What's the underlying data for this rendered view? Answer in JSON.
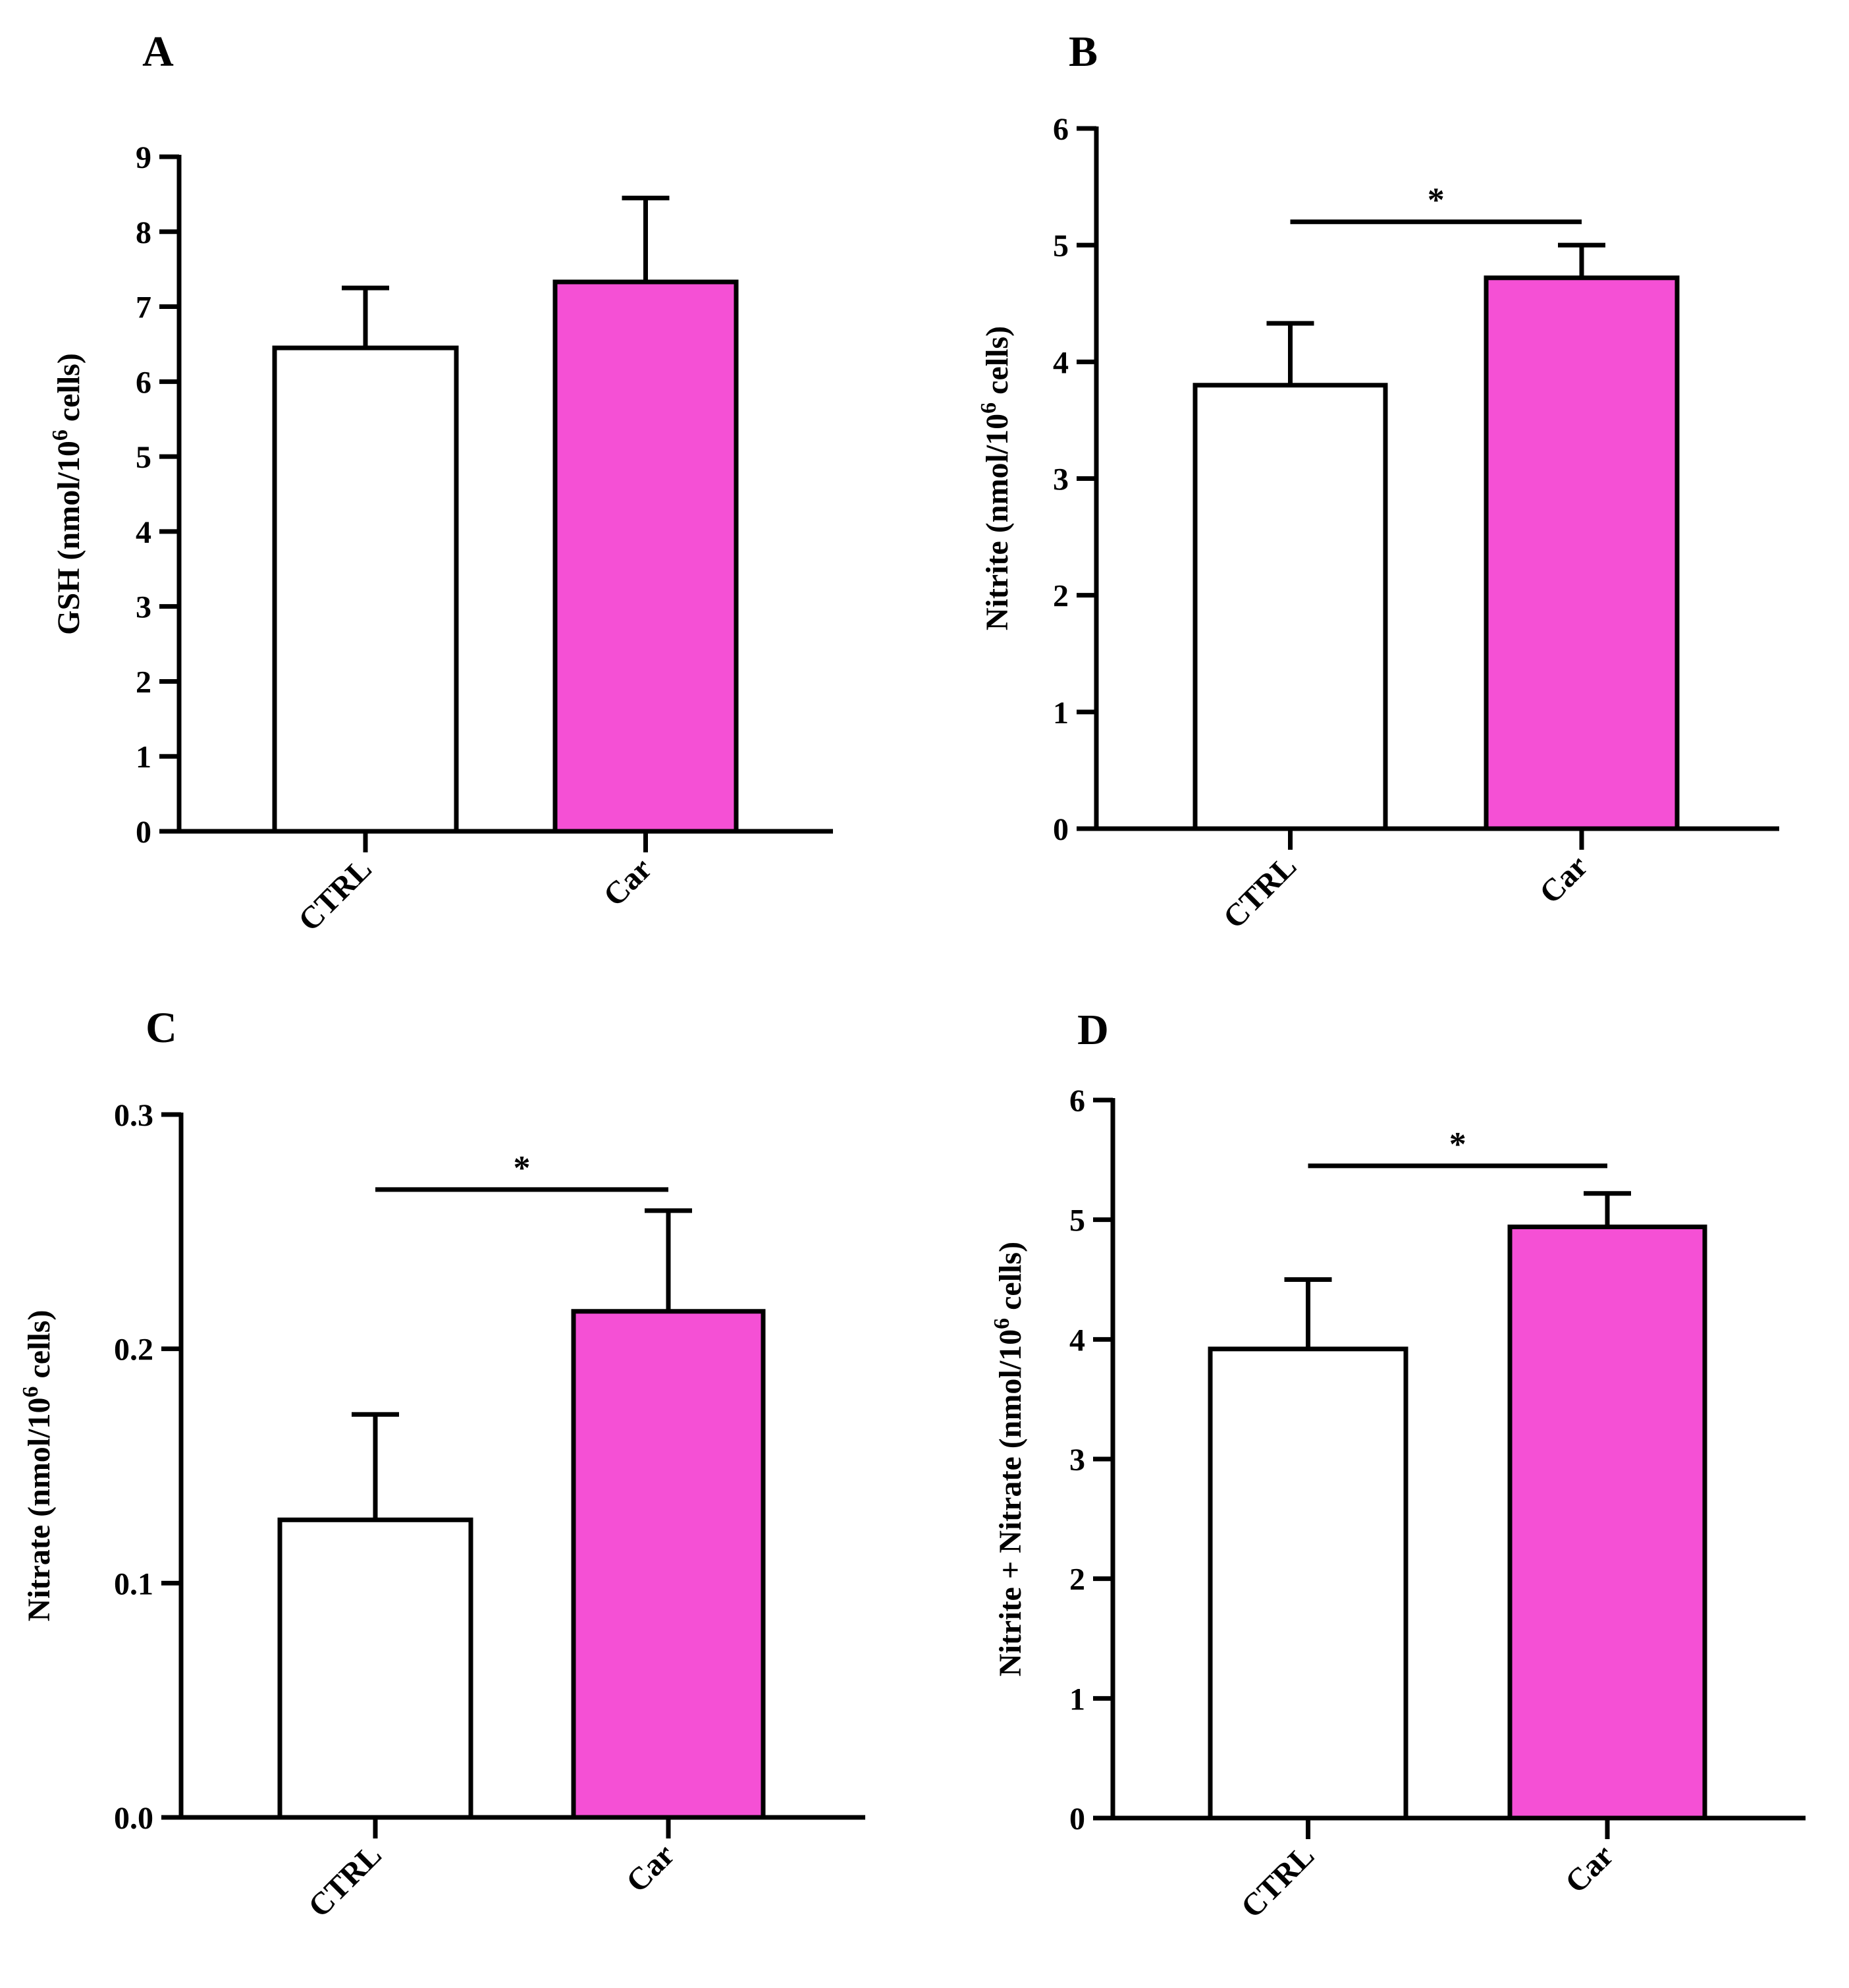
{
  "figure": {
    "colors": {
      "ctrl_fill": "#ffffff",
      "car_fill": "#f550d5",
      "stroke": "#000000"
    }
  },
  "chart_data": [
    {
      "type": "bar",
      "panel": "A",
      "categories": [
        "CTRL",
        "Car"
      ],
      "values": [
        6.45,
        7.33
      ],
      "errors": [
        0.8,
        1.12
      ],
      "ylabel_main": "GSH (nmol/10",
      "ylabel_sup": "6",
      "ylabel_end": " cells)",
      "ylim": [
        0,
        9
      ],
      "yticks": [
        0,
        1,
        2,
        3,
        4,
        5,
        6,
        7,
        8,
        9
      ],
      "ytick_labels": [
        "0",
        "1",
        "2",
        "3",
        "4",
        "5",
        "6",
        "7",
        "8",
        "9"
      ],
      "significance": null,
      "grid": false
    },
    {
      "type": "bar",
      "panel": "B",
      "categories": [
        "CTRL",
        "Car"
      ],
      "values": [
        3.8,
        4.72
      ],
      "errors": [
        0.53,
        0.28
      ],
      "ylabel_main": "Nitrite (nmol/10",
      "ylabel_sup": "6",
      "ylabel_end": " cells)",
      "ylim": [
        0,
        6
      ],
      "yticks": [
        0,
        1,
        2,
        3,
        4,
        5,
        6
      ],
      "ytick_labels": [
        "0",
        "1",
        "2",
        "3",
        "4",
        "5",
        "6"
      ],
      "significance": {
        "label": "*",
        "level": 5.2
      },
      "grid": false
    },
    {
      "type": "bar",
      "panel": "C",
      "categories": [
        "CTRL",
        "Car"
      ],
      "values": [
        0.127,
        0.216
      ],
      "errors": [
        0.045,
        0.043
      ],
      "ylabel_main": "Nitrate (nmol/10",
      "ylabel_sup": "6",
      "ylabel_end": " cells)",
      "ylim": [
        0,
        0.3
      ],
      "yticks": [
        0,
        0.1,
        0.2,
        0.3
      ],
      "ytick_labels": [
        "0.0",
        "0.1",
        "0.2",
        "0.3"
      ],
      "significance": {
        "label": "*",
        "level": 0.268
      },
      "grid": false
    },
    {
      "type": "bar",
      "panel": "D",
      "categories": [
        "CTRL",
        "Car"
      ],
      "values": [
        3.92,
        4.94
      ],
      "errors": [
        0.58,
        0.28
      ],
      "ylabel_main": "Nitrite + Nitrate (nmol/10",
      "ylabel_sup": "6",
      "ylabel_end": " cells)",
      "ylim": [
        0,
        6
      ],
      "yticks": [
        0,
        1,
        2,
        3,
        4,
        5,
        6
      ],
      "ytick_labels": [
        "0",
        "1",
        "2",
        "3",
        "4",
        "5",
        "6"
      ],
      "significance": {
        "label": "*",
        "level": 5.45
      },
      "grid": false
    }
  ]
}
